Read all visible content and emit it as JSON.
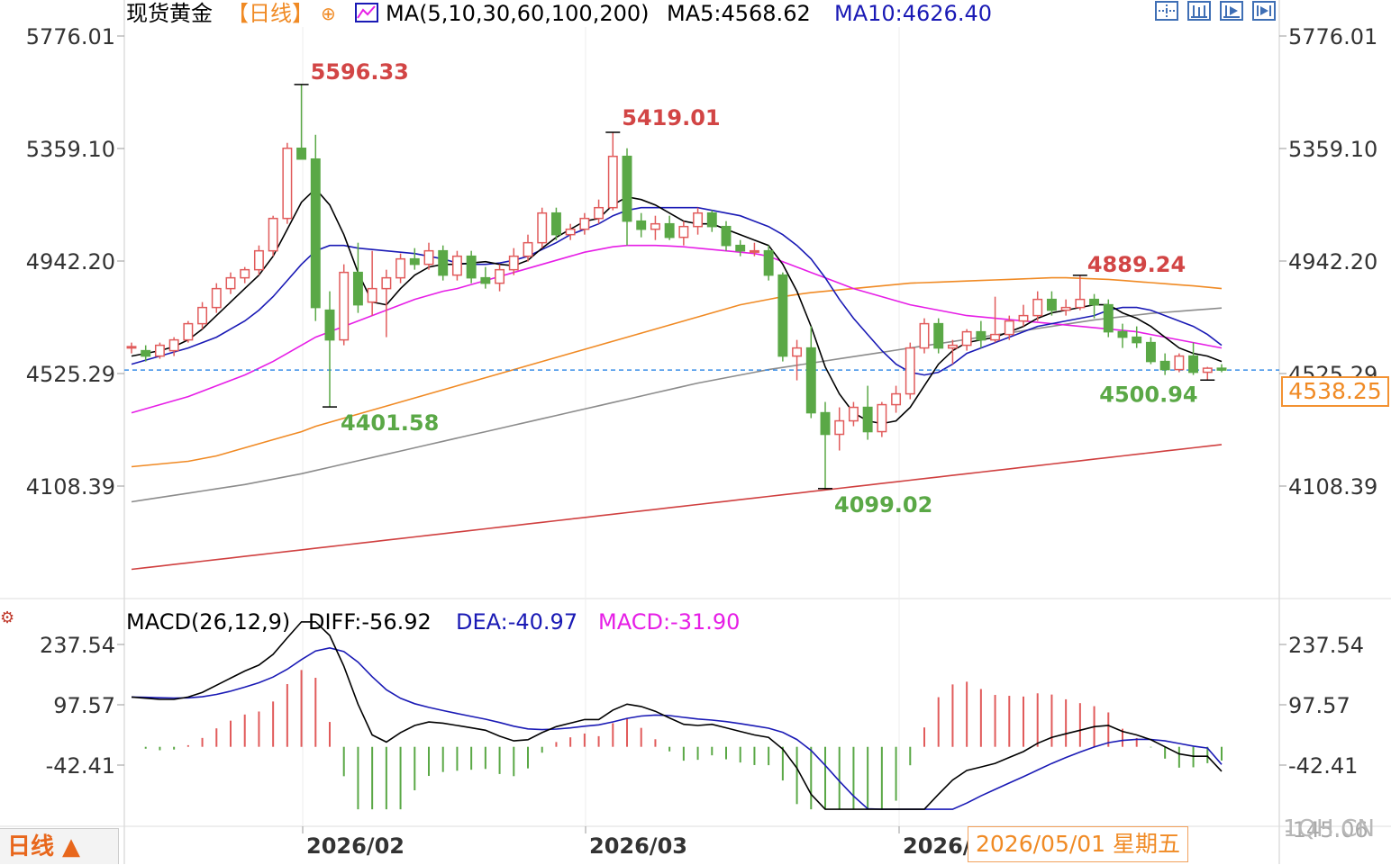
{
  "header": {
    "instrument": "现货黄金",
    "period_tag": "【日线】",
    "indicator": "MA(5,10,30,60,100,200)",
    "ma5_label": "MA5:4568.62",
    "ma10_label": "MA10:4626.40"
  },
  "toolbar": {
    "buttons": [
      "crosshair-icon",
      "zoom-in-icon",
      "zoom-out-icon",
      "scroll-end-icon"
    ]
  },
  "macd_header": {
    "params": "MACD(26,12,9)",
    "diff_label": "DIFF:-56.92",
    "dea_label": "DEA:-40.97",
    "macd_label": "MACD:-31.90"
  },
  "period_button": "日线 ▲",
  "cursor_tip": "2026/05/01 星期五",
  "watermark": "1QH.CN",
  "current_price": "4538.25",
  "colors": {
    "up": "#e15b5b",
    "down": "#5aa846",
    "ma5": "#000000",
    "ma10": "#1a1ab5",
    "ma30": "#e61ee6",
    "ma60": "#f08a24",
    "ma100": "#8c8c8c",
    "ma200": "#d04040",
    "dea": "#1a1ab5",
    "diff": "#000000",
    "price_line": "#3a8fe8"
  },
  "chart_data": [
    {
      "type": "candlestick",
      "title": "现货黄金 日线",
      "x_labels": [
        "2026/02",
        "2026/03",
        "2026/0"
      ],
      "y_ticks": [
        5776.01,
        5359.1,
        4942.2,
        4525.29,
        4108.39
      ],
      "y_tick_labels": [
        "5776.01",
        "5359.10",
        "4942.20",
        "4525.29",
        "4108.39"
      ],
      "ylim": [
        3800,
        5800
      ],
      "current_price": 4538.25,
      "annotations": [
        {
          "label": "5596.33",
          "value": 5596.33,
          "kind": "high"
        },
        {
          "label": "4401.58",
          "value": 4401.58,
          "kind": "low"
        },
        {
          "label": "5419.01",
          "value": 5419.01,
          "kind": "high"
        },
        {
          "label": "4889.24",
          "value": 4889.24,
          "kind": "high"
        },
        {
          "label": "4099.02",
          "value": 4099.02,
          "kind": "low"
        },
        {
          "label": "4500.94",
          "value": 4500.94,
          "kind": "low"
        }
      ],
      "ohlc": [
        [
          4620,
          4640,
          4600,
          4625
        ],
        [
          4610,
          4630,
          4570,
          4590
        ],
        [
          4590,
          4640,
          4580,
          4630
        ],
        [
          4610,
          4660,
          4590,
          4650
        ],
        [
          4650,
          4720,
          4640,
          4710
        ],
        [
          4710,
          4790,
          4690,
          4770
        ],
        [
          4770,
          4860,
          4750,
          4840
        ],
        [
          4840,
          4900,
          4820,
          4880
        ],
        [
          4880,
          4920,
          4860,
          4910
        ],
        [
          4910,
          5000,
          4890,
          4980
        ],
        [
          4980,
          5110,
          4960,
          5100
        ],
        [
          5100,
          5380,
          5080,
          5360
        ],
        [
          5360,
          5596.33,
          5330,
          5320
        ],
        [
          5320,
          5410,
          4720,
          4770
        ],
        [
          4760,
          4830,
          4401.58,
          4650
        ],
        [
          4650,
          4930,
          4630,
          4900
        ],
        [
          4900,
          5010,
          4750,
          4780
        ],
        [
          4790,
          4980,
          4740,
          4840
        ],
        [
          4840,
          4910,
          4660,
          4880
        ],
        [
          4880,
          4970,
          4860,
          4950
        ],
        [
          4950,
          4990,
          4910,
          4930
        ],
        [
          4930,
          5010,
          4910,
          4980
        ],
        [
          4980,
          5000,
          4870,
          4890
        ],
        [
          4890,
          4980,
          4870,
          4960
        ],
        [
          4960,
          4980,
          4860,
          4880
        ],
        [
          4880,
          4920,
          4840,
          4860
        ],
        [
          4860,
          4930,
          4830,
          4910
        ],
        [
          4910,
          4990,
          4890,
          4960
        ],
        [
          4960,
          5040,
          4940,
          5010
        ],
        [
          5010,
          5140,
          4990,
          5120
        ],
        [
          5120,
          5140,
          5020,
          5040
        ],
        [
          5040,
          5080,
          5020,
          5060
        ],
        [
          5060,
          5120,
          5040,
          5100
        ],
        [
          5100,
          5170,
          5080,
          5140
        ],
        [
          5140,
          5419.01,
          5130,
          5330
        ],
        [
          5330,
          5360,
          5000,
          5090
        ],
        [
          5090,
          5120,
          5030,
          5060
        ],
        [
          5060,
          5110,
          5020,
          5080
        ],
        [
          5080,
          5110,
          5020,
          5030
        ],
        [
          5030,
          5090,
          5000,
          5070
        ],
        [
          5070,
          5140,
          5040,
          5120
        ],
        [
          5120,
          5130,
          5050,
          5070
        ],
        [
          5070,
          5090,
          4980,
          5000
        ],
        [
          5000,
          5020,
          4960,
          4980
        ],
        [
          4980,
          5010,
          4960,
          4980
        ],
        [
          4980,
          5000,
          4870,
          4890
        ],
        [
          4890,
          4900,
          4570,
          4590
        ],
        [
          4590,
          4650,
          4500,
          4620
        ],
        [
          4620,
          4700,
          4360,
          4380
        ],
        [
          4380,
          4420,
          4099.02,
          4300
        ],
        [
          4300,
          4400,
          4240,
          4350
        ],
        [
          4350,
          4420,
          4330,
          4400
        ],
        [
          4400,
          4480,
          4280,
          4310
        ],
        [
          4310,
          4420,
          4290,
          4410
        ],
        [
          4410,
          4480,
          4380,
          4450
        ],
        [
          4450,
          4640,
          4430,
          4620
        ],
        [
          4620,
          4730,
          4600,
          4710
        ],
        [
          4710,
          4730,
          4600,
          4620
        ],
        [
          4620,
          4650,
          4560,
          4630
        ],
        [
          4630,
          4690,
          4610,
          4680
        ],
        [
          4680,
          4720,
          4620,
          4650
        ],
        [
          4650,
          4810,
          4640,
          4670
        ],
        [
          4670,
          4740,
          4650,
          4720
        ],
        [
          4720,
          4780,
          4700,
          4740
        ],
        [
          4740,
          4830,
          4720,
          4800
        ],
        [
          4800,
          4830,
          4740,
          4760
        ],
        [
          4760,
          4800,
          4740,
          4770
        ],
        [
          4770,
          4889.24,
          4760,
          4800
        ],
        [
          4800,
          4820,
          4730,
          4780
        ],
        [
          4780,
          4800,
          4660,
          4680
        ],
        [
          4680,
          4710,
          4620,
          4660
        ],
        [
          4660,
          4700,
          4620,
          4640
        ],
        [
          4640,
          4660,
          4560,
          4570
        ],
        [
          4570,
          4600,
          4520,
          4540
        ],
        [
          4540,
          4600,
          4530,
          4590
        ],
        [
          4590,
          4640,
          4520,
          4530
        ],
        [
          4530,
          4550,
          4500.94,
          4545
        ],
        [
          4545,
          4560,
          4530,
          4538.25
        ]
      ],
      "ma": {
        "ma5": [
          4590,
          4600,
          4610,
          4625,
          4650,
          4690,
          4740,
          4790,
          4840,
          4890,
          4960,
          5060,
          5160,
          5210,
          5150,
          5040,
          4900,
          4790,
          4780,
          4840,
          4890,
          4920,
          4930,
          4930,
          4935,
          4940,
          4930,
          4925,
          4945,
          4990,
          5030,
          5060,
          5090,
          5100,
          5150,
          5180,
          5170,
          5150,
          5120,
          5090,
          5080,
          5080,
          5060,
          5040,
          5020,
          5000,
          4930,
          4830,
          4700,
          4550,
          4450,
          4380,
          4350,
          4340,
          4350,
          4400,
          4480,
          4560,
          4610,
          4640,
          4650,
          4660,
          4680,
          4700,
          4730,
          4750,
          4760,
          4770,
          4780,
          4780,
          4750,
          4730,
          4700,
          4660,
          4620,
          4600,
          4590,
          4570
        ],
        "ma10": [
          4560,
          4575,
          4590,
          4605,
          4620,
          4640,
          4660,
          4690,
          4720,
          4760,
          4810,
          4870,
          4930,
          4980,
          5000,
          5000,
          4990,
          4985,
          4980,
          4975,
          4970,
          4960,
          4950,
          4935,
          4930,
          4930,
          4935,
          4945,
          4960,
          4985,
          5010,
          5040,
          5060,
          5080,
          5110,
          5130,
          5140,
          5140,
          5140,
          5140,
          5140,
          5130,
          5120,
          5110,
          5090,
          5070,
          5040,
          5000,
          4950,
          4880,
          4800,
          4730,
          4670,
          4610,
          4560,
          4530,
          4520,
          4530,
          4560,
          4600,
          4620,
          4640,
          4660,
          4680,
          4700,
          4710,
          4720,
          4730,
          4740,
          4760,
          4770,
          4770,
          4760,
          4740,
          4720,
          4700,
          4670,
          4630
        ],
        "ma30": [
          4380,
          4395,
          4410,
          4425,
          4440,
          4460,
          4480,
          4500,
          4520,
          4545,
          4570,
          4600,
          4630,
          4660,
          4680,
          4700,
          4720,
          4740,
          4760,
          4780,
          4800,
          4815,
          4830,
          4840,
          4855,
          4870,
          4885,
          4900,
          4915,
          4930,
          4945,
          4960,
          4975,
          4985,
          4995,
          5000,
          5000,
          5000,
          4998,
          4995,
          4990,
          4985,
          4980,
          4975,
          4970,
          4960,
          4940,
          4920,
          4900,
          4880,
          4860,
          4840,
          4825,
          4810,
          4795,
          4780,
          4770,
          4760,
          4750,
          4740,
          4735,
          4730,
          4725,
          4720,
          4715,
          4710,
          4705,
          4700,
          4695,
          4690,
          4685,
          4680,
          4670,
          4660,
          4650,
          4640,
          4630,
          4620
        ],
        "ma60": [
          4180,
          4185,
          4190,
          4195,
          4200,
          4210,
          4220,
          4235,
          4250,
          4265,
          4280,
          4295,
          4310,
          4330,
          4345,
          4360,
          4375,
          4390,
          4405,
          4420,
          4435,
          4450,
          4465,
          4480,
          4495,
          4510,
          4525,
          4540,
          4555,
          4570,
          4585,
          4600,
          4615,
          4630,
          4645,
          4660,
          4675,
          4690,
          4705,
          4720,
          4735,
          4750,
          4765,
          4780,
          4790,
          4800,
          4810,
          4818,
          4825,
          4830,
          4835,
          4840,
          4845,
          4850,
          4855,
          4860,
          4862,
          4864,
          4866,
          4868,
          4870,
          4872,
          4874,
          4876,
          4878,
          4880,
          4880,
          4878,
          4876,
          4874,
          4870,
          4866,
          4862,
          4858,
          4854,
          4850,
          4845,
          4840
        ],
        "ma100": [
          4050,
          4058,
          4066,
          4074,
          4082,
          4090,
          4098,
          4106,
          4114,
          4124,
          4134,
          4144,
          4154,
          4166,
          4178,
          4190,
          4202,
          4214,
          4226,
          4238,
          4250,
          4262,
          4274,
          4286,
          4298,
          4310,
          4322,
          4334,
          4346,
          4358,
          4370,
          4382,
          4394,
          4406,
          4418,
          4430,
          4442,
          4454,
          4466,
          4478,
          4490,
          4500,
          4510,
          4520,
          4530,
          4540,
          4548,
          4556,
          4564,
          4572,
          4580,
          4588,
          4596,
          4604,
          4612,
          4620,
          4628,
          4636,
          4644,
          4652,
          4660,
          4668,
          4676,
          4684,
          4692,
          4700,
          4708,
          4716,
          4724,
          4730,
          4736,
          4742,
          4748,
          4752,
          4756,
          4760,
          4764,
          4768
        ],
        "ma200": [
          3800,
          3806,
          3812,
          3818,
          3824,
          3830,
          3836,
          3842,
          3848,
          3854,
          3860,
          3866,
          3872,
          3878,
          3884,
          3890,
          3896,
          3902,
          3908,
          3914,
          3920,
          3926,
          3932,
          3938,
          3944,
          3950,
          3956,
          3962,
          3968,
          3974,
          3980,
          3986,
          3992,
          3998,
          4004,
          4010,
          4016,
          4022,
          4028,
          4034,
          4040,
          4046,
          4052,
          4058,
          4064,
          4070,
          4076,
          4082,
          4088,
          4094,
          4100,
          4106,
          4112,
          4118,
          4124,
          4130,
          4136,
          4142,
          4148,
          4154,
          4160,
          4166,
          4172,
          4178,
          4184,
          4190,
          4196,
          4202,
          4208,
          4214,
          4220,
          4226,
          4232,
          4238,
          4244,
          4250,
          4256,
          4262
        ]
      }
    },
    {
      "type": "macd",
      "title": "MACD(26,12,9)",
      "y_ticks": [
        237.54,
        97.57,
        -42.41
      ],
      "y_tick_labels": [
        "237.54",
        "97.57",
        "-42.41"
      ],
      "bottom_tick_label": "-145.06",
      "ylim": [
        -145.06,
        300
      ],
      "diff": [
        -56.92
      ],
      "dea": [
        -40.97
      ],
      "macd": [
        -31.9
      ]
    }
  ]
}
